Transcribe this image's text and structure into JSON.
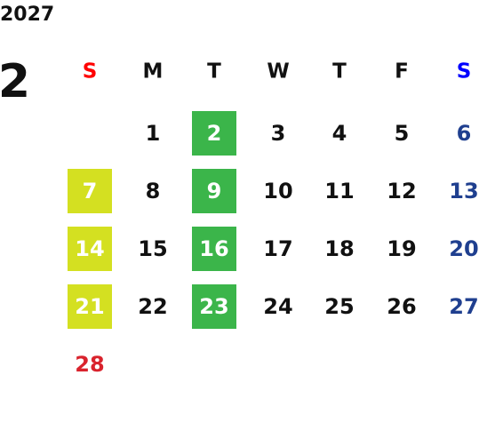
{
  "year": "2027",
  "month": "2",
  "weekdays": [
    {
      "label": "S",
      "color": "#ff0000"
    },
    {
      "label": "M",
      "color": "#111111"
    },
    {
      "label": "T",
      "color": "#111111"
    },
    {
      "label": "W",
      "color": "#111111"
    },
    {
      "label": "T",
      "color": "#111111"
    },
    {
      "label": "F",
      "color": "#111111"
    },
    {
      "label": "S",
      "color": "#0000ff"
    }
  ],
  "day_colors": [
    "#d9232d",
    "#111111",
    "#111111",
    "#111111",
    "#111111",
    "#111111",
    "#1f3f8f"
  ],
  "weeks": [
    [
      null,
      {
        "day": "1"
      },
      {
        "day": "2",
        "bg": "#3bb54a"
      },
      {
        "day": "3"
      },
      {
        "day": "4"
      },
      {
        "day": "5"
      },
      {
        "day": "6"
      }
    ],
    [
      {
        "day": "7",
        "bg": "#d4e021"
      },
      {
        "day": "8"
      },
      {
        "day": "9",
        "bg": "#3bb54a"
      },
      {
        "day": "10"
      },
      {
        "day": "11"
      },
      {
        "day": "12"
      },
      {
        "day": "13"
      }
    ],
    [
      {
        "day": "14",
        "bg": "#d4e021"
      },
      {
        "day": "15"
      },
      {
        "day": "16",
        "bg": "#3bb54a"
      },
      {
        "day": "17"
      },
      {
        "day": "18"
      },
      {
        "day": "19"
      },
      {
        "day": "20"
      }
    ],
    [
      {
        "day": "21",
        "bg": "#d4e021"
      },
      {
        "day": "22"
      },
      {
        "day": "23",
        "bg": "#3bb54a"
      },
      {
        "day": "24"
      },
      {
        "day": "25"
      },
      {
        "day": "26"
      },
      {
        "day": "27"
      }
    ],
    [
      {
        "day": "28"
      }
    ]
  ]
}
